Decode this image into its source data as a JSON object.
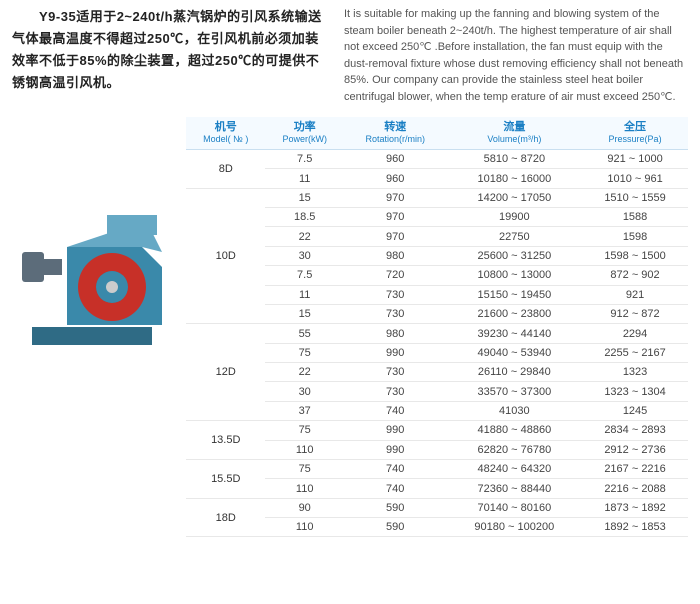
{
  "zh_text": "　　Y9-35适用于2~240t/h蒸汽锅炉的引风系统输送气体最高温度不得超过250℃，在引风机前必须加装效率不低于85%的除尘装置，超过250℃的可提供不锈钢高温引风机。",
  "en_text": "It is suitable for making up the fanning and blowing system of the steam boiler beneath 2~240t/h. The highest temperature of air shall not exceed 250℃ .Before installation, the fan must equip with the dust-removal fixture whose dust removing efficiency shall not beneath 85%. Our company can provide the stainless steel heat boiler centrifugal blower, when the temp erature of air must exceed 250℃.",
  "table": {
    "headers": [
      {
        "zh": "机号",
        "en": "Model( № )"
      },
      {
        "zh": "功率",
        "en": "Power(kW)"
      },
      {
        "zh": "转速",
        "en": "Rotation(r/min)"
      },
      {
        "zh": "流量",
        "en": "Volume(m³/h)"
      },
      {
        "zh": "全压",
        "en": "Pressure(Pa)"
      }
    ],
    "groups": [
      {
        "model": "8D",
        "rows": [
          {
            "power": "7.5",
            "speed": "960",
            "vol": "5810 ~ 8720",
            "press": "921 ~ 1000"
          },
          {
            "power": "11",
            "speed": "960",
            "vol": "10180 ~ 16000",
            "press": "1010 ~ 961"
          }
        ]
      },
      {
        "model": "10D",
        "rows": [
          {
            "power": "15",
            "speed": "970",
            "vol": "14200 ~ 17050",
            "press": "1510 ~ 1559"
          },
          {
            "power": "18.5",
            "speed": "970",
            "vol": "19900",
            "press": "1588"
          },
          {
            "power": "22",
            "speed": "970",
            "vol": "22750",
            "press": "1598"
          },
          {
            "power": "30",
            "speed": "980",
            "vol": "25600 ~ 31250",
            "press": "1598 ~ 1500"
          },
          {
            "power": "7.5",
            "speed": "720",
            "vol": "10800 ~ 13000",
            "press": "872 ~ 902"
          },
          {
            "power": "11",
            "speed": "730",
            "vol": "15150 ~ 19450",
            "press": "921"
          },
          {
            "power": "15",
            "speed": "730",
            "vol": "21600 ~ 23800",
            "press": "912 ~ 872"
          }
        ]
      },
      {
        "model": "12D",
        "rows": [
          {
            "power": "55",
            "speed": "980",
            "vol": "39230 ~ 44140",
            "press": "2294"
          },
          {
            "power": "75",
            "speed": "990",
            "vol": "49040 ~ 53940",
            "press": "2255 ~ 2167"
          },
          {
            "power": "22",
            "speed": "730",
            "vol": "26110 ~ 29840",
            "press": "1323"
          },
          {
            "power": "30",
            "speed": "730",
            "vol": "33570 ~ 37300",
            "press": "1323 ~ 1304"
          },
          {
            "power": "37",
            "speed": "740",
            "vol": "41030",
            "press": "1245"
          }
        ]
      },
      {
        "model": "13.5D",
        "rows": [
          {
            "power": "75",
            "speed": "990",
            "vol": "41880 ~ 48860",
            "press": "2834 ~ 2893"
          },
          {
            "power": "110",
            "speed": "990",
            "vol": "62820 ~ 76780",
            "press": "2912 ~ 2736"
          }
        ]
      },
      {
        "model": "15.5D",
        "rows": [
          {
            "power": "75",
            "speed": "740",
            "vol": "48240 ~ 64320",
            "press": "2167 ~ 2216"
          },
          {
            "power": "110",
            "speed": "740",
            "vol": "72360 ~ 88440",
            "press": "2216 ~ 2088"
          }
        ]
      },
      {
        "model": "18D",
        "rows": [
          {
            "power": "90",
            "speed": "590",
            "vol": "70140 ~ 80160",
            "press": "1873 ~ 1892"
          },
          {
            "power": "110",
            "speed": "590",
            "vol": "90180 ~ 100200",
            "press": "1892 ~ 1853"
          }
        ]
      }
    ]
  },
  "fan_colors": {
    "body": "#3a89aa",
    "body_light": "#66a9c5",
    "inlet": "#c73028",
    "motor": "#5c6c7a",
    "base": "#2f6b85"
  }
}
